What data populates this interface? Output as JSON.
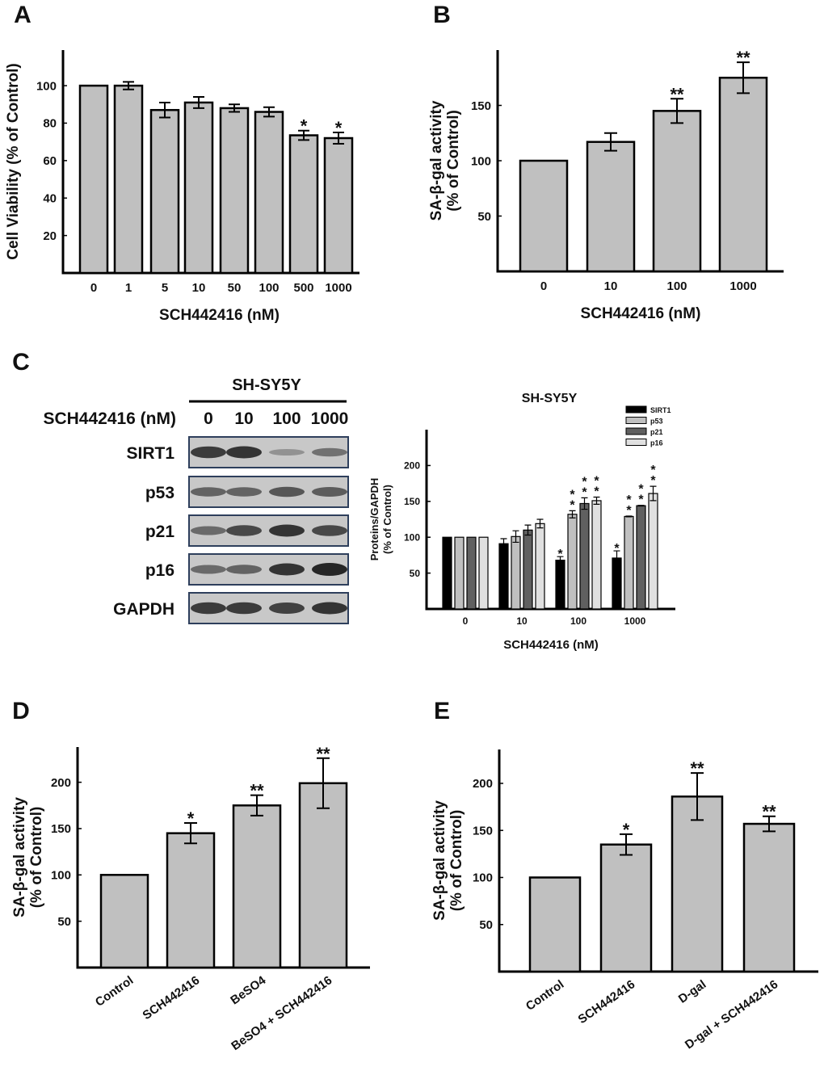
{
  "panel_labels": [
    "A",
    "B",
    "C",
    "D",
    "E"
  ],
  "colors": {
    "bar": "#c0c0c0",
    "edge": "#000000",
    "SIRT1": "#000000",
    "p53": "#c0c0c0",
    "p21": "#606060",
    "p16": "#e0e0e0"
  },
  "chart_data": [
    {
      "id": "A",
      "type": "bar",
      "title": "",
      "xlabel": "SCH442416 (nM)",
      "ylabel": "Cell Viability (% of Control)",
      "categories": [
        "0",
        "1",
        "5",
        "10",
        "50",
        "100",
        "500",
        "1000"
      ],
      "values": [
        100,
        100,
        87,
        91,
        88,
        86,
        73.5,
        72
      ],
      "errors": [
        0,
        2,
        4,
        3,
        2,
        2.5,
        2.5,
        3
      ],
      "significance": [
        "",
        "",
        "",
        "",
        "",
        "",
        "*",
        "*"
      ],
      "yticks": [
        "20",
        "40",
        "60",
        "80",
        "100"
      ],
      "ylim": [
        0,
        119
      ]
    },
    {
      "id": "B",
      "type": "bar",
      "title": "",
      "xlabel": "SCH442416 (nM)",
      "ylabel": "SA-β-gal activity\n(% of Control)",
      "categories": [
        "0",
        "10",
        "100",
        "1000"
      ],
      "values": [
        100,
        117,
        145,
        175
      ],
      "errors": [
        0,
        8,
        11,
        14
      ],
      "significance": [
        "",
        "",
        "**",
        "**"
      ],
      "yticks": [
        "50",
        "100",
        "150"
      ],
      "ylim": [
        0,
        200
      ]
    },
    {
      "id": "C",
      "type": "bar",
      "title": "SH-SY5Y",
      "xlabel": "SCH442416 (nM)",
      "ylabel": "Proteins/GAPDH\n(% of Control)",
      "categories": [
        "0",
        "10",
        "100",
        "1000"
      ],
      "series": [
        {
          "name": "SIRT1",
          "values": [
            100,
            91,
            68,
            71
          ],
          "errors": [
            0,
            7,
            5,
            10
          ],
          "significance": [
            "",
            "",
            "*",
            "*"
          ]
        },
        {
          "name": "p53",
          "values": [
            100,
            101,
            132,
            129
          ],
          "errors": [
            0,
            8,
            5,
            0.5
          ],
          "significance": [
            "",
            "",
            "**",
            "**"
          ]
        },
        {
          "name": "p21",
          "values": [
            100,
            110,
            147,
            144
          ],
          "errors": [
            0,
            7,
            8,
            0.5
          ],
          "significance": [
            "",
            "",
            "**",
            "**"
          ]
        },
        {
          "name": "p16",
          "values": [
            100,
            119,
            151,
            161
          ],
          "errors": [
            0,
            6,
            5,
            10
          ],
          "significance": [
            "",
            "",
            "**",
            "**"
          ]
        }
      ],
      "legend": "top-right",
      "yticks": [
        "50",
        "100",
        "150",
        "200"
      ],
      "ylim": [
        0,
        250
      ]
    },
    {
      "id": "D",
      "type": "bar",
      "title": "",
      "xlabel": "",
      "ylabel": "SA-β-gal activity\n(% of Control)",
      "categories": [
        "Control",
        "SCH442416",
        "BeSO4",
        "BeSO4 + SCH442416"
      ],
      "values": [
        100,
        145,
        175,
        199
      ],
      "errors": [
        0,
        11,
        11,
        27
      ],
      "significance": [
        "",
        "*",
        "**",
        "**"
      ],
      "yticks": [
        "50",
        "100",
        "150",
        "200"
      ],
      "ylim": [
        0,
        238
      ]
    },
    {
      "id": "E",
      "type": "bar",
      "title": "",
      "xlabel": "",
      "ylabel": "SA-β-gal activity\n(% of Control)",
      "categories": [
        "Control",
        "SCH442416",
        "D-gal",
        "D-gal + SCH442416"
      ],
      "values": [
        100,
        135,
        186,
        157
      ],
      "errors": [
        0,
        11,
        25,
        8
      ],
      "significance": [
        "",
        "*",
        "**",
        "**"
      ],
      "yticks": [
        "50",
        "100",
        "150",
        "200"
      ],
      "ylim": [
        0,
        236
      ]
    }
  ],
  "western_blot": {
    "cell_line": "SH-SY5Y",
    "treatment_label": "SCH442416 (nM)",
    "lanes": [
      "0",
      "10",
      "100",
      "1000"
    ],
    "rows": [
      {
        "name": "SIRT1",
        "intensity": [
          0.85,
          0.9,
          0.2,
          0.45
        ]
      },
      {
        "name": "p53",
        "intensity": [
          0.55,
          0.55,
          0.65,
          0.6
        ]
      },
      {
        "name": "p21",
        "intensity": [
          0.5,
          0.75,
          0.9,
          0.75
        ]
      },
      {
        "name": "p16",
        "intensity": [
          0.5,
          0.55,
          0.9,
          1.0
        ]
      },
      {
        "name": "GAPDH",
        "intensity": [
          0.85,
          0.85,
          0.8,
          0.9
        ]
      }
    ]
  }
}
